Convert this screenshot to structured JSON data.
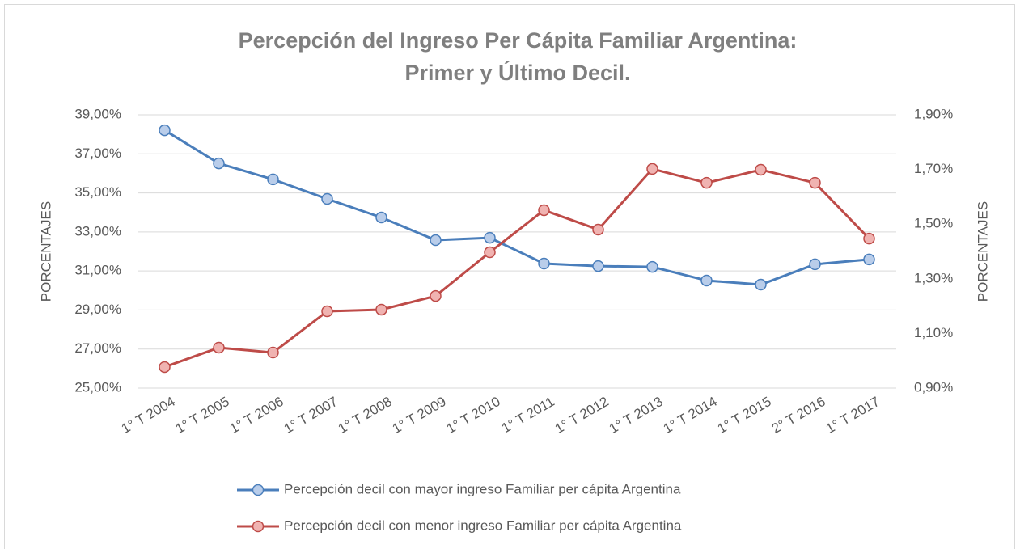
{
  "chart_data": {
    "type": "line",
    "title": [
      "Percepción del Ingreso Per Cápita Familiar Argentina:",
      "Primer y Último Decil."
    ],
    "categories": [
      "1° T 2004",
      "1° T 2005",
      "1° T 2006",
      "1° T 2007",
      "1° T 2008",
      "1° T 2009",
      "1° T 2010",
      "1° T 2011",
      "1° T 2012",
      "1° T 2013",
      "1° T 2014",
      "1° T 2015",
      "2° T 2016",
      "1° T 2017"
    ],
    "series": [
      {
        "name": "Percepción decil con mayor ingreso Familiar per cápita Argentina",
        "color": "#4a7ebb",
        "marker_fill": "#b9cdea",
        "values": [
          38.21,
          36.51,
          35.69,
          34.69,
          33.74,
          32.58,
          32.7,
          31.38,
          31.25,
          31.21,
          30.51,
          30.3,
          31.34,
          31.59
        ]
      },
      {
        "name": "Percepción decil con menor ingreso Familiar per cápita Argentina",
        "color": "#be4b48",
        "marker_fill": "#f0b3b1",
        "axis": "y2",
        "values": [
          0.977,
          1.048,
          1.03,
          1.181,
          1.187,
          1.237,
          1.397,
          1.551,
          1.48,
          1.702,
          1.651,
          1.699,
          1.651,
          1.447
        ]
      }
    ],
    "ylabel": "PORCENTAJES",
    "y2label": "PORCENTAJES",
    "ylim": [
      25,
      39
    ],
    "yticks": [
      {
        "value": 25,
        "label": "25,00%"
      },
      {
        "value": 27,
        "label": "27,00%"
      },
      {
        "value": 29,
        "label": "29,00%"
      },
      {
        "value": 31,
        "label": "31,00%"
      },
      {
        "value": 33,
        "label": "33,00%"
      },
      {
        "value": 35,
        "label": "35,00%"
      },
      {
        "value": 37,
        "label": "37,00%"
      },
      {
        "value": 39,
        "label": "39,00%"
      }
    ],
    "y2lim": [
      0.9,
      1.9
    ],
    "y2ticks": [
      {
        "value": 0.9,
        "label": "0,90%"
      },
      {
        "value": 1.1,
        "label": "1,10%"
      },
      {
        "value": 1.3,
        "label": "1,30%"
      },
      {
        "value": 1.5,
        "label": "1,50%"
      },
      {
        "value": 1.7,
        "label": "1,70%"
      },
      {
        "value": 1.9,
        "label": "1,90%"
      }
    ],
    "grid": true,
    "legend": "bottom"
  }
}
